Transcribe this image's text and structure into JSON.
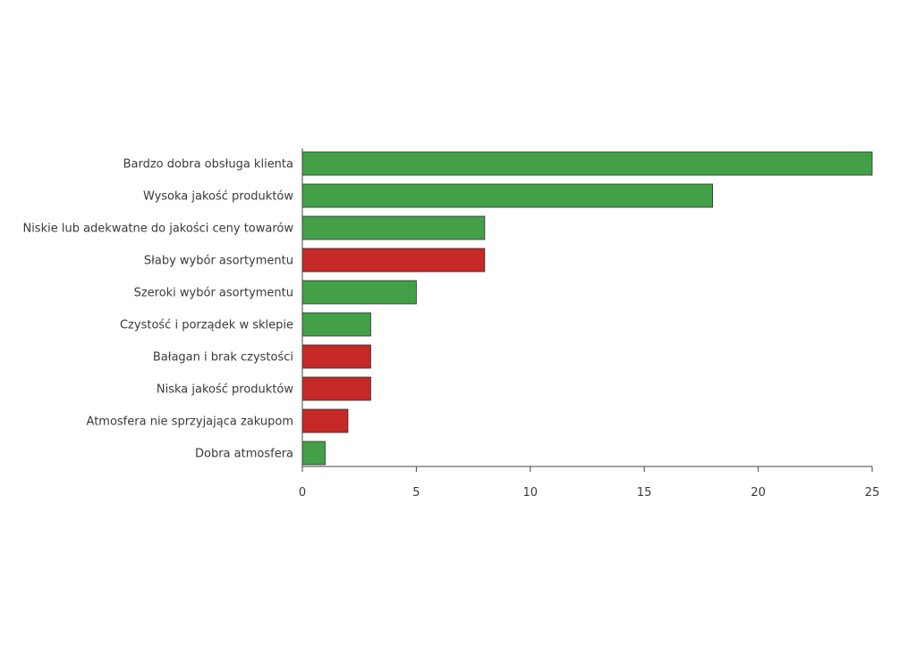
{
  "chart_data": {
    "type": "bar",
    "orientation": "horizontal",
    "title": "",
    "xlabel": "",
    "ylabel": "",
    "xlim": [
      0,
      25
    ],
    "x_ticks": [
      "0",
      "5",
      "10",
      "15",
      "20",
      "25"
    ],
    "grid": false,
    "legend": "none",
    "colors": {
      "positive": "#43a047",
      "negative": "#c62828",
      "bar_edge": "#2f2f2f"
    },
    "categories": [
      "Bardzo dobra obsługa klienta",
      "Wysoka jakość produktów",
      "Niskie lub adekwatne do jakości ceny towarów",
      "Słaby wybór asortymentu",
      "Szeroki wybór asortymentu",
      "Czystość i porządek w sklepie",
      "Bałagan i brak czystości",
      "Niska jakość produktów",
      "Atmosfera nie sprzyjająca zakupom",
      "Dobra atmosfera"
    ],
    "values": [
      25,
      18,
      8,
      8,
      5,
      3,
      3,
      3,
      2,
      1
    ],
    "bar_types": [
      "positive",
      "positive",
      "positive",
      "negative",
      "positive",
      "positive",
      "negative",
      "negative",
      "negative",
      "positive"
    ]
  }
}
